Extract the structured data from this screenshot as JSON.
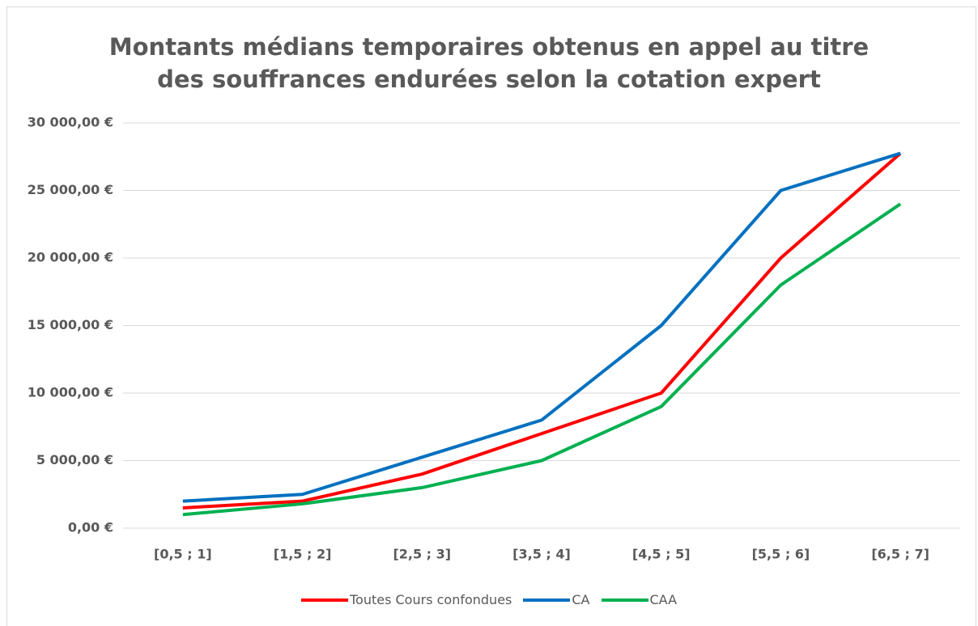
{
  "chart_data": {
    "type": "line",
    "title": "Montants médians temporaires obtenus en appel au titre des souffrances endurées selon la cotation expert",
    "categories": [
      "[0,5 ; 1]",
      "[1,5 ; 2]",
      "[2,5 ; 3]",
      "[3,5 ; 4]",
      "[4,5 ; 5]",
      "[5,5 ; 6]",
      "[6,5 ; 7]"
    ],
    "series": [
      {
        "name": "Toutes Cours confondues",
        "color": "#ff0000",
        "values": [
          1500,
          2000,
          4000,
          7000,
          10000,
          20000,
          27750
        ]
      },
      {
        "name": "CA",
        "color": "#0070c0",
        "values": [
          2000,
          2500,
          5250,
          8000,
          15000,
          25000,
          27750
        ]
      },
      {
        "name": "CAA",
        "color": "#00b050",
        "values": [
          1000,
          1800,
          3000,
          5000,
          9000,
          18000,
          24000
        ]
      }
    ],
    "ylim": [
      0,
      30000
    ],
    "yticks": [
      {
        "value": 0,
        "label": "0,00 €"
      },
      {
        "value": 5000,
        "label": "5 000,00 €"
      },
      {
        "value": 10000,
        "label": "10 000,00 €"
      },
      {
        "value": 15000,
        "label": "15 000,00 €"
      },
      {
        "value": 20000,
        "label": "20 000,00 €"
      },
      {
        "value": 25000,
        "label": "25 000,00 €"
      },
      {
        "value": 30000,
        "label": "30 000,00 €"
      }
    ],
    "grid": true,
    "legend": "bottom"
  }
}
